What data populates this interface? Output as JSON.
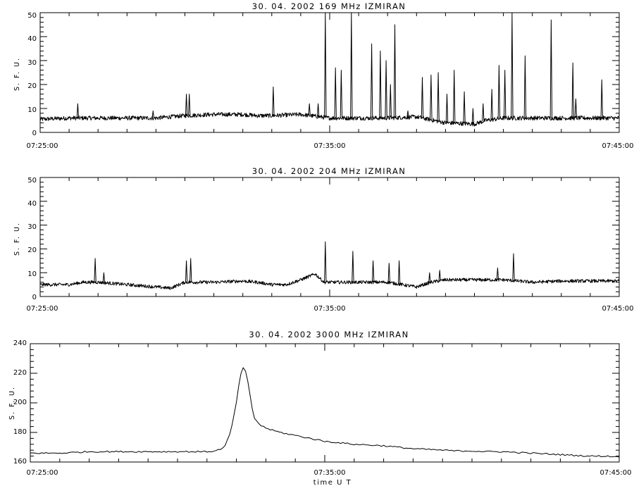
{
  "chart_data": [
    {
      "type": "line",
      "title": "30.  04.  2002    169 MHz    IZMIRAN",
      "ylabel": "S. F. U.",
      "xlabel": "",
      "xticklabels": [
        "07:25:00",
        "07:35:00",
        "07:45:00"
      ],
      "xlim_minutes": [
        0,
        20
      ],
      "ylim": [
        0,
        50
      ],
      "yticks": [
        0,
        10,
        20,
        30,
        40,
        50
      ],
      "grid": false,
      "baseline": [
        [
          0,
          5.5
        ],
        [
          1,
          6
        ],
        [
          2,
          6
        ],
        [
          3,
          6
        ],
        [
          4,
          6
        ],
        [
          5,
          7
        ],
        [
          6,
          7.5
        ],
        [
          7,
          7.5
        ],
        [
          7.5,
          7
        ],
        [
          8,
          7
        ],
        [
          9,
          7.5
        ],
        [
          10,
          6
        ],
        [
          11,
          6
        ],
        [
          12,
          6
        ],
        [
          13,
          6.5
        ],
        [
          14,
          4
        ],
        [
          15,
          3.5
        ],
        [
          15.4,
          5
        ],
        [
          16,
          6
        ],
        [
          17,
          6
        ],
        [
          18,
          6
        ],
        [
          19,
          6
        ],
        [
          20,
          6
        ]
      ],
      "spikes": [
        {
          "t": 1.3,
          "peak": 12
        },
        {
          "t": 3.9,
          "peak": 9
        },
        {
          "t": 5.05,
          "peak": 16
        },
        {
          "t": 5.15,
          "peak": 16
        },
        {
          "t": 8.05,
          "peak": 19
        },
        {
          "t": 9.3,
          "peak": 12
        },
        {
          "t": 9.6,
          "peak": 12
        },
        {
          "t": 9.85,
          "peak": 50
        },
        {
          "t": 10.2,
          "peak": 27
        },
        {
          "t": 10.4,
          "peak": 26
        },
        {
          "t": 10.75,
          "peak": 50
        },
        {
          "t": 11.45,
          "peak": 37
        },
        {
          "t": 11.75,
          "peak": 34
        },
        {
          "t": 11.95,
          "peak": 30
        },
        {
          "t": 12.1,
          "peak": 20
        },
        {
          "t": 12.25,
          "peak": 45
        },
        {
          "t": 12.7,
          "peak": 9
        },
        {
          "t": 13.2,
          "peak": 23
        },
        {
          "t": 13.5,
          "peak": 24
        },
        {
          "t": 13.75,
          "peak": 25
        },
        {
          "t": 14.05,
          "peak": 16
        },
        {
          "t": 14.3,
          "peak": 26
        },
        {
          "t": 14.65,
          "peak": 17
        },
        {
          "t": 14.95,
          "peak": 10
        },
        {
          "t": 15.3,
          "peak": 12
        },
        {
          "t": 15.6,
          "peak": 18
        },
        {
          "t": 15.85,
          "peak": 28
        },
        {
          "t": 16.05,
          "peak": 26
        },
        {
          "t": 16.3,
          "peak": 50
        },
        {
          "t": 16.75,
          "peak": 32
        },
        {
          "t": 17.65,
          "peak": 47
        },
        {
          "t": 18.4,
          "peak": 29
        },
        {
          "t": 18.5,
          "peak": 14
        },
        {
          "t": 19.4,
          "peak": 22
        }
      ]
    },
    {
      "type": "line",
      "title": "30.  04.  2002    204 MHz    IZMIRAN",
      "ylabel": "S. F. U.",
      "xlabel": "",
      "xticklabels": [
        "07:25:00",
        "07:35:00",
        "07:45:00"
      ],
      "xlim_minutes": [
        0,
        20
      ],
      "ylim": [
        0,
        50
      ],
      "yticks": [
        0,
        10,
        20,
        30,
        40,
        50
      ],
      "grid": false,
      "baseline": [
        [
          0,
          5
        ],
        [
          1,
          5
        ],
        [
          1.5,
          6
        ],
        [
          2,
          6
        ],
        [
          3,
          5
        ],
        [
          4,
          4
        ],
        [
          4.5,
          3.5
        ],
        [
          5,
          6
        ],
        [
          6,
          6
        ],
        [
          7,
          6.5
        ],
        [
          7.5,
          6
        ],
        [
          8,
          5
        ],
        [
          8.5,
          5
        ],
        [
          9,
          7
        ],
        [
          9.5,
          9.5
        ],
        [
          9.8,
          6
        ],
        [
          10,
          6
        ],
        [
          11,
          6
        ],
        [
          12,
          6
        ],
        [
          12.5,
          5
        ],
        [
          13,
          4
        ],
        [
          13.5,
          6
        ],
        [
          14,
          7
        ],
        [
          15,
          7
        ],
        [
          16,
          7
        ],
        [
          17,
          6
        ],
        [
          18,
          6.5
        ],
        [
          19,
          6.5
        ],
        [
          20,
          6.5
        ]
      ],
      "spikes": [
        {
          "t": 1.9,
          "peak": 16
        },
        {
          "t": 2.2,
          "peak": 10
        },
        {
          "t": 5.05,
          "peak": 15
        },
        {
          "t": 5.2,
          "peak": 16
        },
        {
          "t": 9.85,
          "peak": 23
        },
        {
          "t": 10.8,
          "peak": 19
        },
        {
          "t": 11.5,
          "peak": 15
        },
        {
          "t": 12.05,
          "peak": 14
        },
        {
          "t": 12.4,
          "peak": 15
        },
        {
          "t": 13.45,
          "peak": 10
        },
        {
          "t": 13.8,
          "peak": 11
        },
        {
          "t": 15.8,
          "peak": 12
        },
        {
          "t": 16.35,
          "peak": 18
        }
      ]
    },
    {
      "type": "line",
      "title": "30.  04.  2002    3000 MHz    IZMIRAN",
      "ylabel": "S. F. U.",
      "xlabel": "time  U T",
      "xticklabels": [
        "07:25:00",
        "07:35:00",
        "07:45:00"
      ],
      "xlim_minutes": [
        0,
        20
      ],
      "ylim": [
        160,
        240
      ],
      "yticks": [
        160,
        180,
        200,
        220,
        240
      ],
      "grid": false,
      "x": [
        0,
        0.5,
        1,
        1.5,
        2,
        2.5,
        3,
        3.5,
        4,
        4.5,
        5,
        5.5,
        6,
        6.3,
        6.6,
        6.8,
        7,
        7.1,
        7.2,
        7.3,
        7.4,
        7.5,
        7.6,
        7.8,
        8,
        8.3,
        8.6,
        9,
        9.5,
        10,
        10.5,
        11,
        11.5,
        12,
        12.5,
        13,
        13.5,
        14,
        14.5,
        15,
        15.5,
        16,
        16.5,
        17,
        17.5,
        18,
        18.5,
        19,
        19.5,
        20
      ],
      "values": [
        166,
        166,
        166,
        166.5,
        167,
        167,
        167,
        167,
        167,
        167,
        167,
        167,
        167,
        167.5,
        170,
        180,
        200,
        215,
        224,
        222,
        213,
        200,
        190,
        185,
        183,
        181,
        179.5,
        178,
        176,
        174,
        173,
        172,
        171.5,
        171,
        170,
        169,
        168.5,
        168,
        167.5,
        167.5,
        167,
        167,
        166.5,
        166,
        165.5,
        165,
        164.5,
        164,
        164,
        163.5
      ]
    }
  ]
}
